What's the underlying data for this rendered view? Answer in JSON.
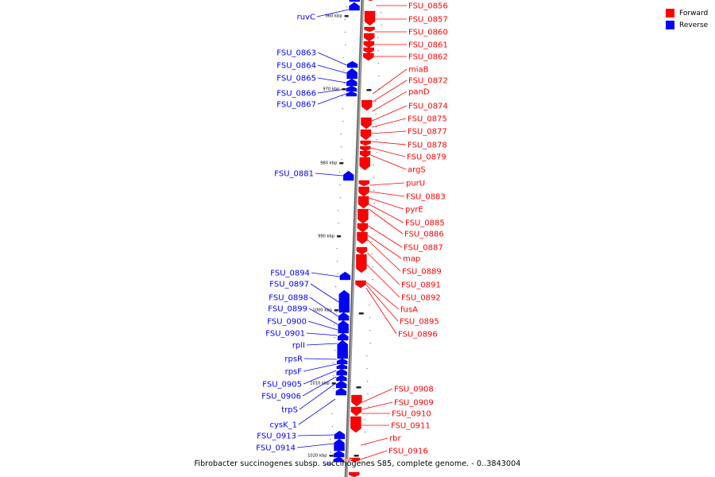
{
  "caption": "Fibrobacter succinogenes subsp. succinogenes S85, complete genome. - 0..3843004",
  "legend": [
    {
      "label": "Forward",
      "color": "#ff0000"
    },
    {
      "label": "Reverse",
      "color": "#0000ff"
    }
  ],
  "colors": {
    "forward": "#ff0000",
    "reverse": "#0000ff",
    "axis": "#888888"
  },
  "ticks": [
    "960 kbp",
    "970 kbp",
    "980 kbp",
    "990 kbp",
    "1000 kbp",
    "1010 kbp",
    "1020 kbp"
  ],
  "forward_labels": [
    "FSU_0856",
    "FSU_0857",
    "FSU_0860",
    "FSU_0861",
    "FSU_0862",
    "miaB",
    "FSU_0872",
    "panD",
    "FSU_0874",
    "FSU_0875",
    "FSU_0877",
    "FSU_0878",
    "FSU_0879",
    "argS",
    "purU",
    "FSU_0883",
    "pyrE",
    "FSU_0885",
    "FSU_0886",
    "FSU_0887",
    "map",
    "FSU_0889",
    "FSU_0891",
    "FSU_0892",
    "fusA",
    "FSU_0895",
    "FSU_0896",
    "FSU_0908",
    "FSU_0909",
    "FSU_0910",
    "FSU_0911",
    "rbr",
    "FSU_0916"
  ],
  "reverse_labels": [
    "ruvC",
    "FSU_0863",
    "FSU_0864",
    "FSU_0865",
    "FSU_0866",
    "FSU_0867",
    "FSU_0881",
    "FSU_0894",
    "FSU_0897",
    "FSU_0898",
    "FSU_0899",
    "FSU_0900",
    "FSU_0901",
    "rplI",
    "rpsR",
    "rpsF",
    "FSU_0905",
    "FSU_0906",
    "trpS",
    "cysK_1",
    "FSU_0913",
    "FSU_0914"
  ]
}
